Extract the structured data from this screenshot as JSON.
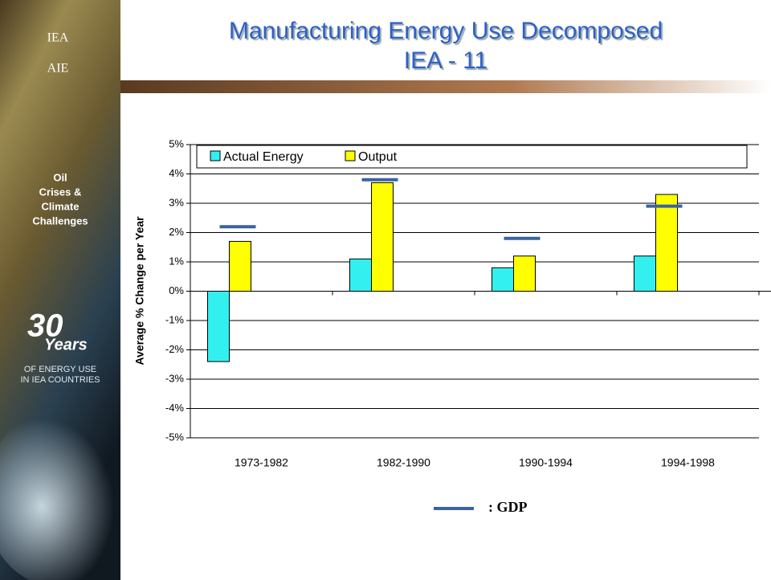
{
  "sidebar": {
    "logo": [
      "IEA",
      "AIE"
    ],
    "theme": [
      "Oil",
      "Crises &",
      "Climate",
      "Challenges"
    ],
    "years_number": "30",
    "years_word": "Years",
    "caption": [
      "OF ENERGY USE",
      "IN IEA COUNTRIES"
    ]
  },
  "chart_data": {
    "type": "bar",
    "title": [
      "Manufacturing Energy Use Decomposed",
      "IEA - 11"
    ],
    "y_label": "Average % Change per Year",
    "categories": [
      "1973-1982",
      "1982-1990",
      "1990-1994",
      "1994-1998"
    ],
    "series": [
      {
        "name": "Actual Energy",
        "color": "#33f0f0",
        "values": [
          -2.4,
          1.1,
          0.8,
          1.2
        ]
      },
      {
        "name": "Output",
        "color": "#ffff00",
        "values": [
          1.7,
          3.7,
          1.2,
          3.3
        ]
      },
      {
        "name": ": GDP",
        "color": "#3a64a0",
        "style": "dash",
        "values": [
          2.2,
          3.8,
          1.8,
          2.9
        ]
      }
    ],
    "ylim": [
      -5,
      5
    ],
    "yticks": [
      {
        "value": -5,
        "label": "-5%"
      },
      {
        "value": -4,
        "label": "-4%"
      },
      {
        "value": -3,
        "label": "-3%"
      },
      {
        "value": -2,
        "label": "-2%"
      },
      {
        "value": -1,
        "label": "-1%"
      },
      {
        "value": 0,
        "label": "0%"
      },
      {
        "value": 1,
        "label": "1%"
      },
      {
        "value": 2,
        "label": "2%"
      },
      {
        "value": 3,
        "label": "3%"
      },
      {
        "value": 4,
        "label": "4%"
      },
      {
        "value": 5,
        "label": "5%"
      }
    ],
    "grid": true
  }
}
